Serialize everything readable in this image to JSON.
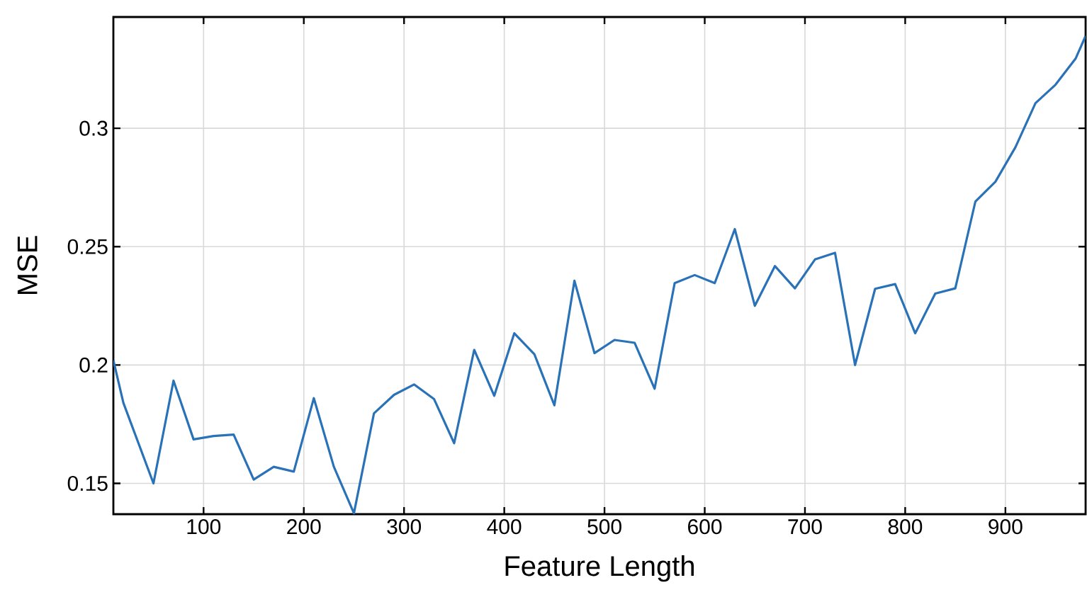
{
  "chart_data": {
    "type": "line",
    "xlabel": "Feature Length",
    "ylabel": "MSE",
    "x": [
      10,
      20,
      50,
      70,
      90,
      110,
      130,
      150,
      170,
      190,
      210,
      230,
      250,
      270,
      290,
      310,
      330,
      350,
      370,
      390,
      410,
      430,
      450,
      470,
      490,
      510,
      530,
      550,
      570,
      590,
      610,
      630,
      650,
      670,
      690,
      710,
      730,
      750,
      770,
      790,
      810,
      830,
      850,
      870,
      890,
      910,
      930,
      950,
      970,
      980
    ],
    "series": [
      {
        "color": "#2a72b8",
        "values": [
          0.202,
          0.184,
          0.15,
          0.1934,
          0.1686,
          0.17,
          0.1706,
          0.1516,
          0.157,
          0.155,
          0.186,
          0.157,
          0.1374,
          0.1796,
          0.1874,
          0.1918,
          0.1856,
          0.167,
          0.2064,
          0.187,
          0.2134,
          0.2046,
          0.183,
          0.2356,
          0.205,
          0.2106,
          0.2094,
          0.19,
          0.2346,
          0.238,
          0.2346,
          0.2574,
          0.225,
          0.2418,
          0.2324,
          0.2446,
          0.2474,
          0.2,
          0.2322,
          0.2342,
          0.2134,
          0.2302,
          0.2324,
          0.269,
          0.2774,
          0.292,
          0.3106,
          0.3184,
          0.3294,
          0.339
        ]
      }
    ],
    "xlim": [
      10,
      980
    ],
    "ylim": [
      0.137,
      0.347
    ],
    "xticks": [
      100,
      200,
      300,
      400,
      500,
      600,
      700,
      800,
      900
    ],
    "yticks": [
      0.15,
      0.2,
      0.25,
      0.3
    ],
    "grid": true,
    "marker": "none",
    "line_style": "solid"
  }
}
